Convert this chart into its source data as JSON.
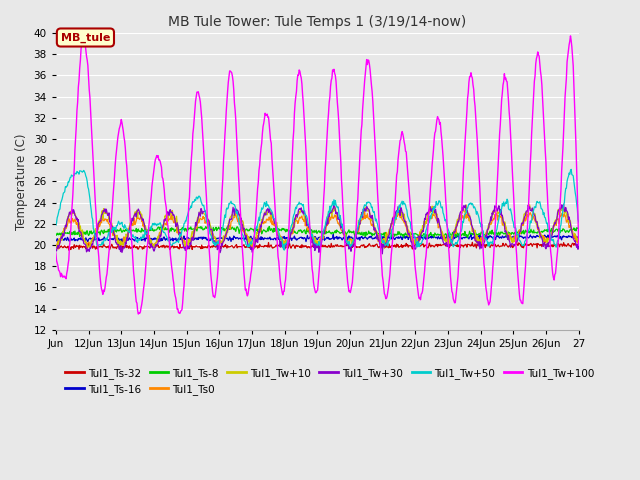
{
  "title": "MB Tule Tower: Tule Temps 1 (3/19/14-now)",
  "ylabel": "Temperature (C)",
  "xlim": [
    0,
    16
  ],
  "ylim": [
    12,
    40
  ],
  "yticks": [
    12,
    14,
    16,
    18,
    20,
    22,
    24,
    26,
    28,
    30,
    32,
    34,
    36,
    38,
    40
  ],
  "xtick_labels": [
    "Jun",
    "12Jun",
    "13Jun",
    "14Jun",
    "15Jun",
    "16Jun",
    "17Jun",
    "18Jun",
    "19Jun",
    "20Jun",
    "21Jun",
    "22Jun",
    "23Jun",
    "24Jun",
    "25Jun",
    "26Jun",
    "27"
  ],
  "background_color": "#e8e8e8",
  "grid_color": "#ffffff",
  "legend_entries": [
    {
      "label": "Tul1_Ts-32",
      "color": "#cc0000"
    },
    {
      "label": "Tul1_Ts-16",
      "color": "#0000cc"
    },
    {
      "label": "Tul1_Ts-8",
      "color": "#00cc00"
    },
    {
      "label": "Tul1_Ts0",
      "color": "#ff8800"
    },
    {
      "label": "Tul1_Tw+10",
      "color": "#cccc00"
    },
    {
      "label": "Tul1_Tw+30",
      "color": "#8800cc"
    },
    {
      "label": "Tul1_Tw+50",
      "color": "#00cccc"
    },
    {
      "label": "Tul1_Tw+100",
      "color": "#ff00ff"
    }
  ],
  "annotation": {
    "text": "MB_tule",
    "facecolor": "#ffffcc",
    "edgecolor": "#aa0000",
    "textcolor": "#aa0000"
  },
  "tw100_peaks_x": [
    0.85,
    2.0,
    3.1,
    4.35,
    5.35,
    6.45,
    7.45,
    8.5,
    9.55,
    10.6,
    11.7,
    12.7,
    13.75,
    14.75,
    15.75
  ],
  "tw100_peaks_y": [
    39.5,
    31.5,
    28.5,
    34.5,
    36.5,
    32.5,
    36.5,
    36.5,
    37.5,
    30.5,
    32.0,
    36.0,
    36.0,
    38.0,
    39.5
  ],
  "tw100_troughs_x": [
    0.3,
    1.45,
    2.55,
    3.8,
    4.85,
    5.85,
    6.95,
    7.95,
    9.0,
    10.1,
    11.15,
    12.2,
    13.25,
    14.25,
    15.25
  ],
  "tw100_troughs_y": [
    17.0,
    15.5,
    13.5,
    13.5,
    15.0,
    15.5,
    15.5,
    15.5,
    15.5,
    15.0,
    15.0,
    14.5,
    14.5,
    14.5,
    17.0
  ]
}
